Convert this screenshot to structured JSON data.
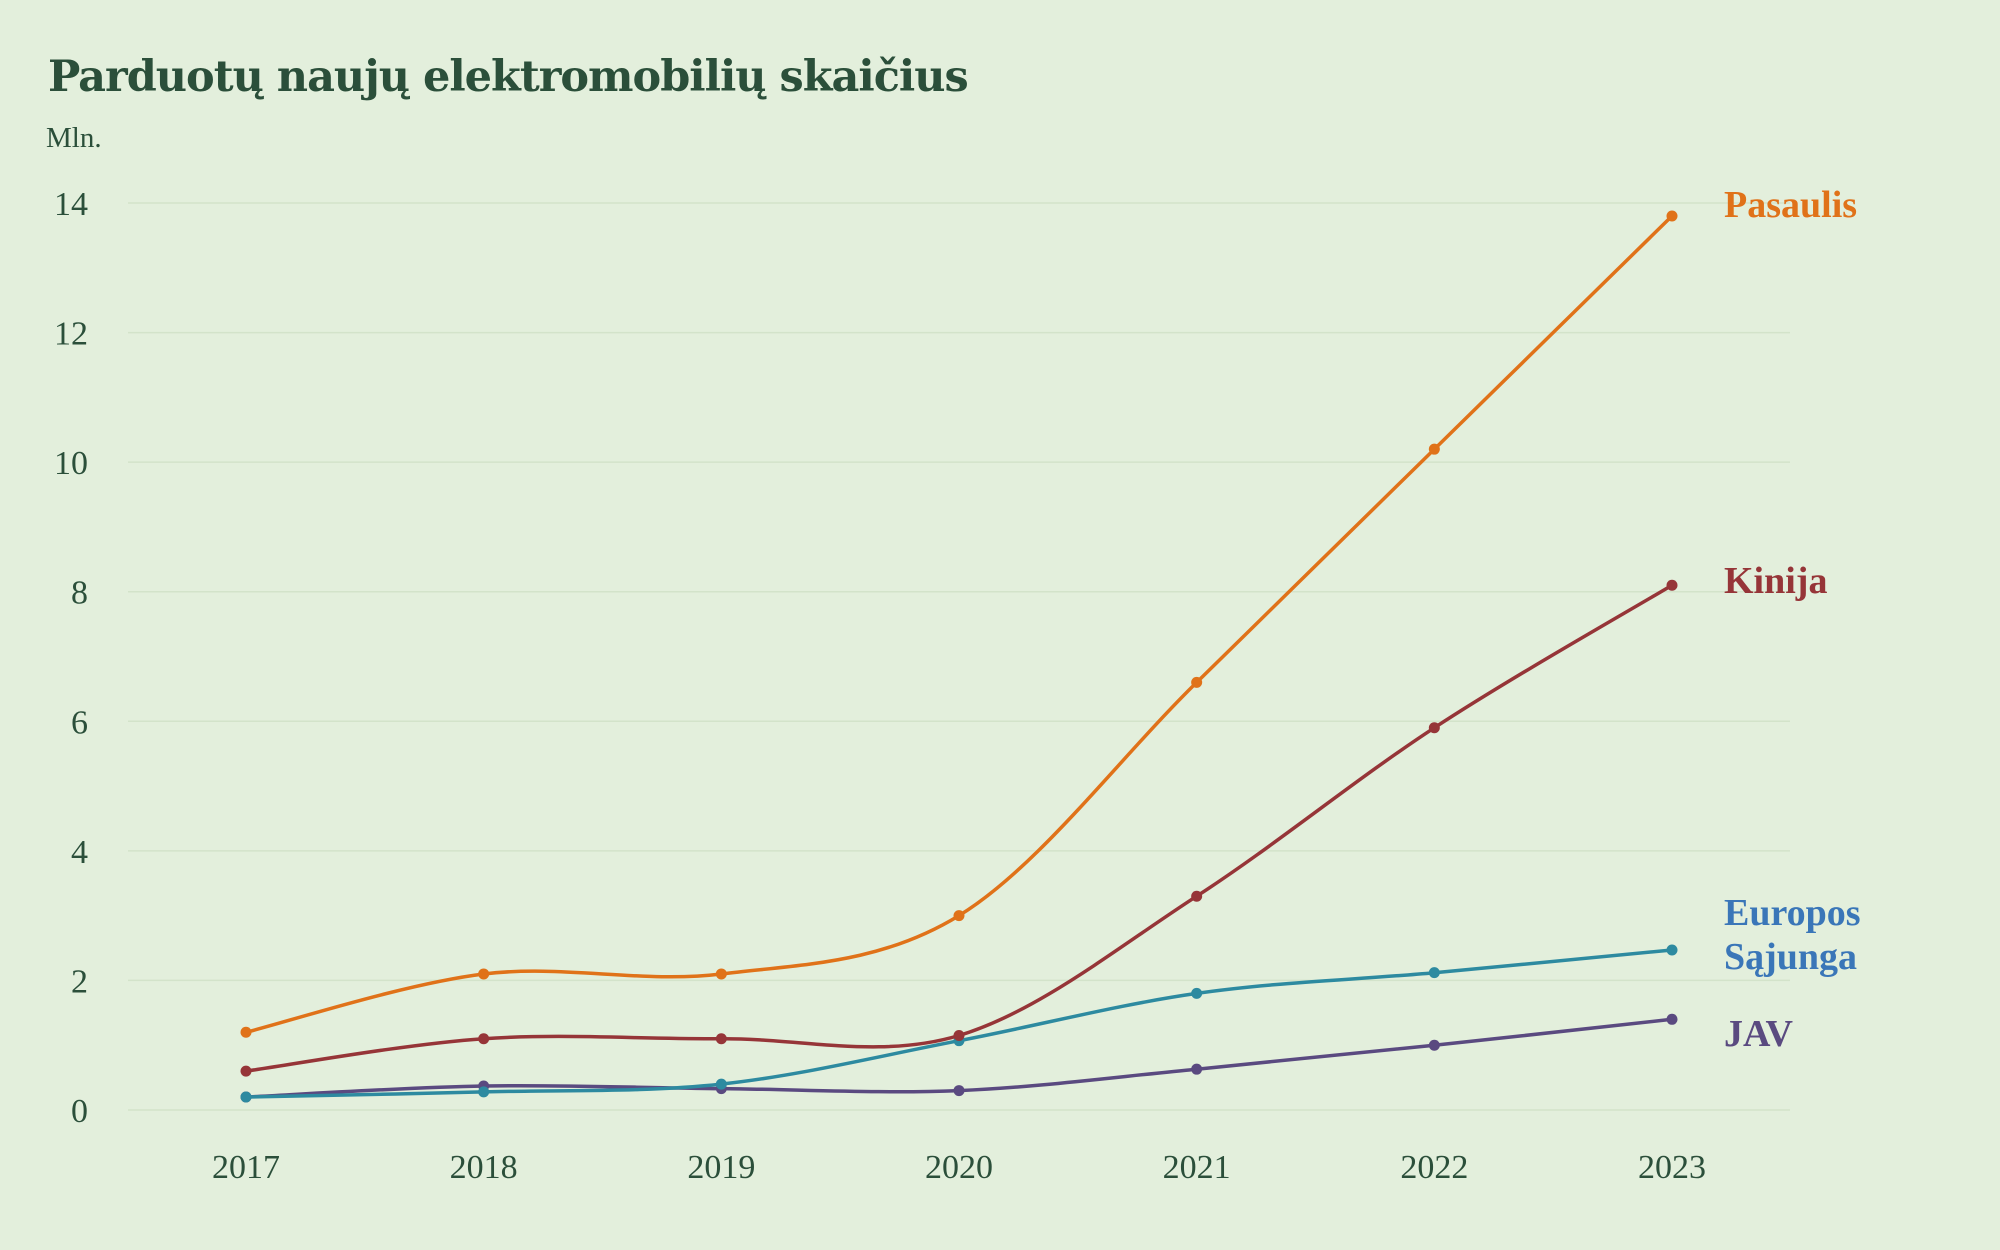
{
  "header": {
    "title": "Parduotų naujų elektromobilių skaičius",
    "unit": "Mln."
  },
  "chart_data": {
    "type": "line",
    "title": "Parduotų naujų elektromobilių skaičius",
    "ylabel": "Mln.",
    "xlabel": "",
    "x": [
      "2017",
      "2018",
      "2019",
      "2020",
      "2021",
      "2022",
      "2023"
    ],
    "yticks": [
      "0",
      "2",
      "4",
      "6",
      "8",
      "10",
      "12",
      "14"
    ],
    "ylim": [
      0,
      14
    ],
    "grid": true,
    "legend": "inline-right",
    "series": [
      {
        "name": "Pasaulis",
        "label_lines": [
          "Pasaulis"
        ],
        "color": "#e07219",
        "values": [
          1.2,
          2.1,
          2.1,
          3.0,
          6.6,
          10.2,
          13.8
        ]
      },
      {
        "name": "Kinija",
        "label_lines": [
          "Kinija"
        ],
        "color": "#963538",
        "values": [
          0.6,
          1.1,
          1.1,
          1.15,
          3.3,
          5.9,
          8.1
        ]
      },
      {
        "name": "Europos Sąjunga",
        "label_lines": [
          "Europos",
          "Sąjunga"
        ],
        "color": "#2d8aa0",
        "label_color": "#3a76b8",
        "values": [
          0.2,
          0.28,
          0.4,
          1.07,
          1.8,
          2.12,
          2.47
        ]
      },
      {
        "name": "JAV",
        "label_lines": [
          "JAV"
        ],
        "color": "#5a4a80",
        "values": [
          0.2,
          0.37,
          0.33,
          0.3,
          0.63,
          1.0,
          1.4
        ]
      }
    ]
  }
}
